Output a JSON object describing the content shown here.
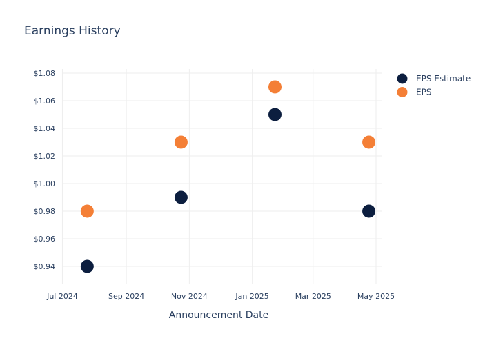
{
  "chart_data": {
    "type": "scatter",
    "title": "Earnings History",
    "xlabel": "Announcement Date",
    "ylabel": "",
    "x_ticks": [
      {
        "date": "2024-07-01",
        "label": "Jul 2024"
      },
      {
        "date": "2024-09-01",
        "label": "Sep 2024"
      },
      {
        "date": "2024-11-01",
        "label": "Nov 2024"
      },
      {
        "date": "2025-01-01",
        "label": "Jan 2025"
      },
      {
        "date": "2025-03-01",
        "label": "Mar 2025"
      },
      {
        "date": "2025-05-01",
        "label": "May 2025"
      }
    ],
    "xlim": [
      "2024-06-24",
      "2025-05-07"
    ],
    "y_ticks": [
      {
        "value": 0.94,
        "label": "$0.94"
      },
      {
        "value": 0.96,
        "label": "$0.96"
      },
      {
        "value": 0.98,
        "label": "$0.98"
      },
      {
        "value": 1.0,
        "label": "$1.00"
      },
      {
        "value": 1.02,
        "label": "$1.02"
      },
      {
        "value": 1.04,
        "label": "$1.04"
      },
      {
        "value": 1.06,
        "label": "$1.06"
      },
      {
        "value": 1.08,
        "label": "$1.08"
      }
    ],
    "ylim": [
      0.927,
      1.083
    ],
    "grid": true,
    "legend_position": "top-right",
    "series": [
      {
        "name": "EPS Estimate",
        "color": "#0c1e3f",
        "points": [
          {
            "x": "2024-07-25",
            "y": 0.94
          },
          {
            "x": "2024-10-24",
            "y": 0.99
          },
          {
            "x": "2025-01-23",
            "y": 1.05
          },
          {
            "x": "2025-04-24",
            "y": 0.98
          }
        ]
      },
      {
        "name": "EPS",
        "color": "#f47f36",
        "points": [
          {
            "x": "2024-07-25",
            "y": 0.98
          },
          {
            "x": "2024-10-24",
            "y": 1.03
          },
          {
            "x": "2025-01-23",
            "y": 1.07
          },
          {
            "x": "2025-04-24",
            "y": 1.03
          }
        ]
      }
    ]
  }
}
